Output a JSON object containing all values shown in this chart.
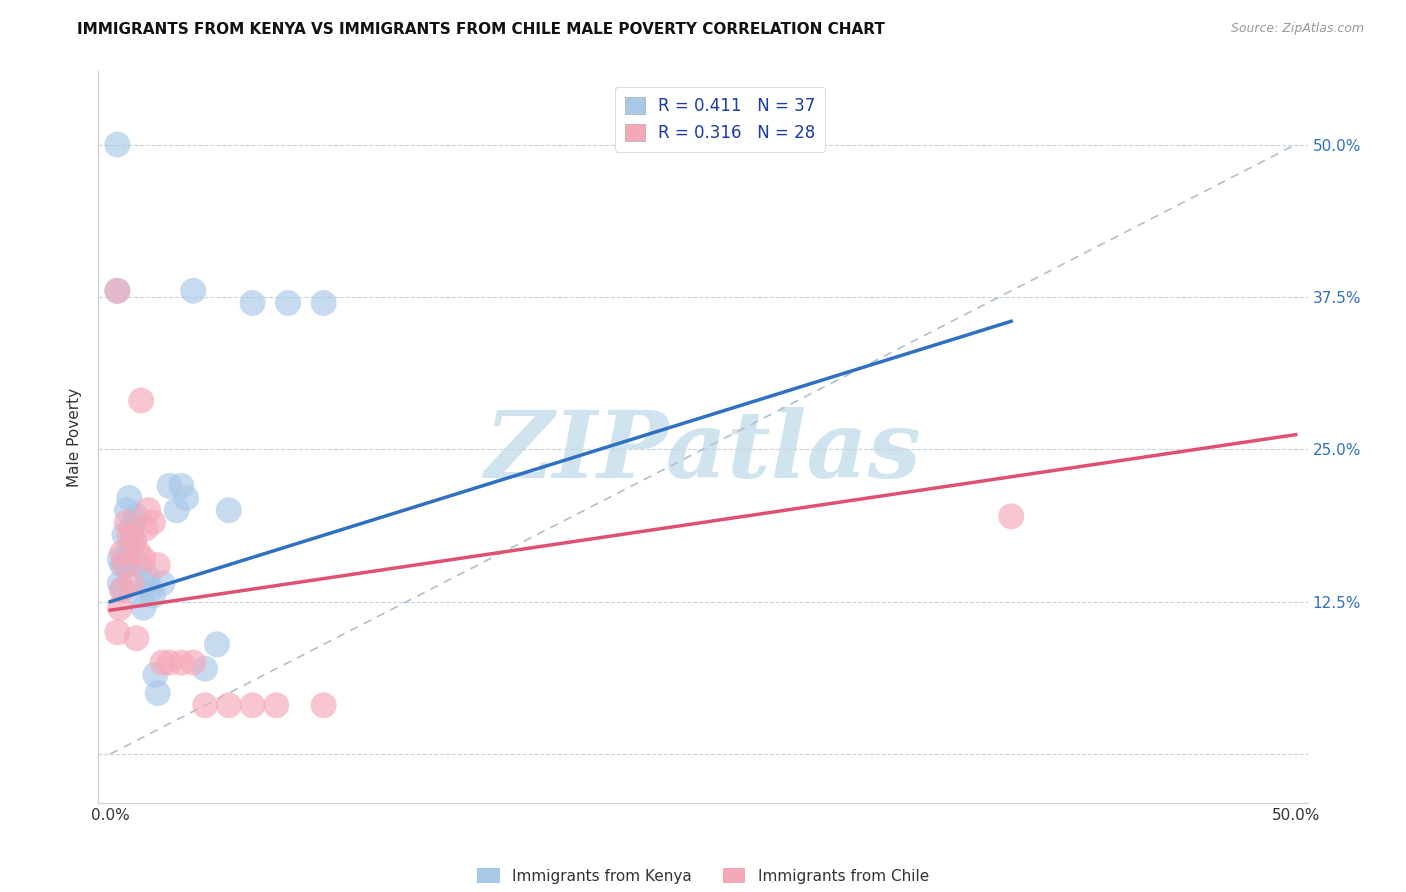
{
  "title": "IMMIGRANTS FROM KENYA VS IMMIGRANTS FROM CHILE MALE POVERTY CORRELATION CHART",
  "source": "Source: ZipAtlas.com",
  "ylabel": "Male Poverty",
  "xlim": [
    -0.005,
    0.505
  ],
  "ylim": [
    -0.04,
    0.56
  ],
  "kenya_R": 0.411,
  "kenya_N": 37,
  "chile_R": 0.316,
  "chile_N": 28,
  "kenya_color": "#a8c8e8",
  "chile_color": "#f5a8b8",
  "kenya_line_color": "#3070c0",
  "chile_line_color": "#e05070",
  "diagonal_color": "#b0c0d0",
  "watermark_color": "#d0e4f0",
  "legend_label_kenya": "Immigrants from Kenya",
  "legend_label_chile": "Immigrants from Chile",
  "kenya_line_x0": 0.0,
  "kenya_line_y0": 0.125,
  "kenya_line_x1": 0.38,
  "kenya_line_y1": 0.355,
  "chile_line_x0": 0.0,
  "chile_line_y0": 0.118,
  "chile_line_x1": 0.5,
  "chile_line_y1": 0.262,
  "kenya_x": [
    0.003,
    0.004,
    0.004,
    0.005,
    0.005,
    0.006,
    0.006,
    0.007,
    0.007,
    0.008,
    0.008,
    0.009,
    0.01,
    0.01,
    0.011,
    0.012,
    0.013,
    0.014,
    0.015,
    0.016,
    0.017,
    0.018,
    0.019,
    0.02,
    0.022,
    0.025,
    0.028,
    0.03,
    0.032,
    0.035,
    0.04,
    0.045,
    0.05,
    0.06,
    0.075,
    0.09,
    0.003
  ],
  "kenya_y": [
    0.5,
    0.14,
    0.16,
    0.155,
    0.135,
    0.18,
    0.16,
    0.2,
    0.155,
    0.21,
    0.17,
    0.185,
    0.19,
    0.175,
    0.195,
    0.155,
    0.13,
    0.12,
    0.14,
    0.145,
    0.135,
    0.13,
    0.065,
    0.05,
    0.14,
    0.22,
    0.2,
    0.22,
    0.21,
    0.38,
    0.07,
    0.09,
    0.2,
    0.37,
    0.37,
    0.37,
    0.38
  ],
  "chile_x": [
    0.003,
    0.004,
    0.005,
    0.005,
    0.006,
    0.007,
    0.008,
    0.009,
    0.01,
    0.011,
    0.012,
    0.013,
    0.014,
    0.015,
    0.016,
    0.018,
    0.02,
    0.022,
    0.025,
    0.03,
    0.035,
    0.04,
    0.05,
    0.06,
    0.07,
    0.09,
    0.38,
    0.003
  ],
  "chile_y": [
    0.1,
    0.12,
    0.135,
    0.165,
    0.155,
    0.19,
    0.18,
    0.14,
    0.175,
    0.095,
    0.165,
    0.29,
    0.16,
    0.185,
    0.2,
    0.19,
    0.155,
    0.075,
    0.075,
    0.075,
    0.075,
    0.04,
    0.04,
    0.04,
    0.04,
    0.04,
    0.195,
    0.38
  ]
}
